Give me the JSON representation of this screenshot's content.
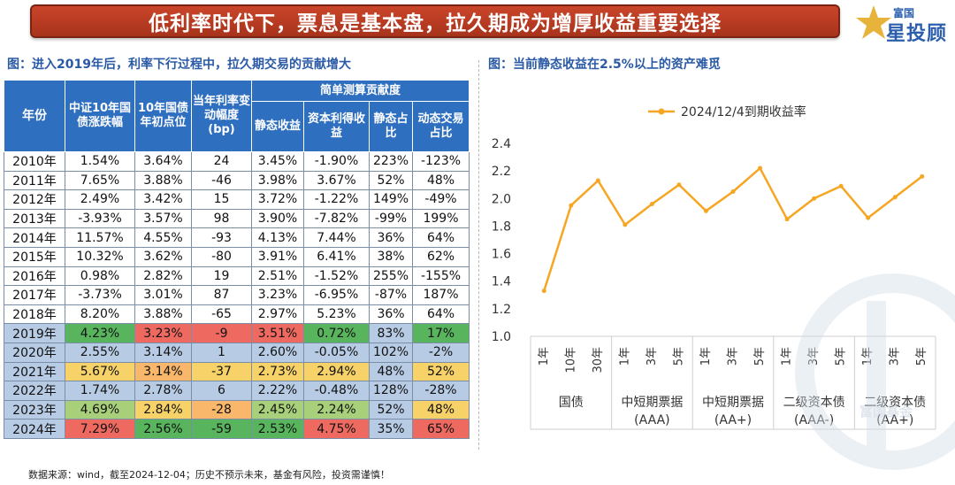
{
  "header": {
    "title": "低利率时代下，票息是基本盘，拉久期成为增厚收益重要选择",
    "logo_small": "富国",
    "logo_big": "星投顾"
  },
  "left": {
    "subtitle": "图：进入2019年后，利率下行过程中，拉久期交易的贡献增大",
    "group_header": "简单测算贡献度",
    "headers": [
      "年份",
      "中证10年国债涨跌幅",
      "10年国债年初点位",
      "当年利率变动幅度(bp)",
      "静态收益",
      "资本利得收益",
      "静态占比",
      "动态交易占比"
    ],
    "rows": [
      [
        "2010年",
        "1.54%",
        "3.64%",
        "24",
        "3.45%",
        "-1.90%",
        "223%",
        "-123%"
      ],
      [
        "2011年",
        "7.65%",
        "3.88%",
        "-46",
        "3.98%",
        "3.67%",
        "52%",
        "48%"
      ],
      [
        "2012年",
        "2.49%",
        "3.42%",
        "15",
        "3.72%",
        "-1.22%",
        "149%",
        "-49%"
      ],
      [
        "2013年",
        "-3.93%",
        "3.57%",
        "98",
        "3.90%",
        "-7.82%",
        "-99%",
        "199%"
      ],
      [
        "2014年",
        "11.57%",
        "4.55%",
        "-93",
        "4.13%",
        "7.44%",
        "36%",
        "64%"
      ],
      [
        "2015年",
        "10.32%",
        "3.62%",
        "-80",
        "3.91%",
        "6.41%",
        "38%",
        "62%"
      ],
      [
        "2016年",
        "0.98%",
        "2.82%",
        "19",
        "2.51%",
        "-1.52%",
        "255%",
        "-155%"
      ],
      [
        "2017年",
        "-3.73%",
        "3.01%",
        "87",
        "3.23%",
        "-6.95%",
        "-87%",
        "187%"
      ],
      [
        "2018年",
        "8.20%",
        "3.88%",
        "-65",
        "2.97%",
        "5.23%",
        "36%",
        "64%"
      ],
      [
        "2019年",
        "4.23%",
        "3.23%",
        "-9",
        "3.51%",
        "0.72%",
        "83%",
        "17%"
      ],
      [
        "2020年",
        "2.55%",
        "3.14%",
        "1",
        "2.60%",
        "-0.05%",
        "102%",
        "-2%"
      ],
      [
        "2021年",
        "5.67%",
        "3.14%",
        "-37",
        "2.73%",
        "2.94%",
        "48%",
        "52%"
      ],
      [
        "2022年",
        "1.74%",
        "2.78%",
        "6",
        "2.22%",
        "-0.48%",
        "128%",
        "-28%"
      ],
      [
        "2023年",
        "4.69%",
        "2.84%",
        "-28",
        "2.45%",
        "2.24%",
        "52%",
        "48%"
      ],
      [
        "2024年",
        "7.29%",
        "2.56%",
        "-59",
        "2.53%",
        "4.75%",
        "35%",
        "65%"
      ]
    ],
    "cell_colors": {
      "9": [
        "",
        "g",
        "r",
        "r",
        "r",
        "g",
        "",
        "g"
      ],
      "10": [
        "",
        "",
        "",
        "",
        "",
        "",
        "",
        ""
      ],
      "11": [
        "",
        "y",
        "o",
        "y",
        "y",
        "y",
        "",
        "y"
      ],
      "12": [
        "",
        "",
        "",
        "",
        "",
        "",
        "",
        ""
      ],
      "13": [
        "",
        "lg",
        "y",
        "o",
        "lg",
        "lg",
        "",
        "y"
      ],
      "14": [
        "",
        "r",
        "g",
        "g",
        "g",
        "r",
        "",
        "r"
      ]
    }
  },
  "right": {
    "subtitle": "图：当前静态收益在2.5%以上的资产难觅"
  },
  "chart_data": {
    "type": "line",
    "title": "",
    "legend": [
      "2024/12/4到期收益率"
    ],
    "legend_position": "top",
    "series_color": "#f5a623",
    "ylim": [
      1.0,
      2.4
    ],
    "yticks": [
      "1.0",
      "1.2",
      "1.4",
      "1.6",
      "1.8",
      "2.0",
      "2.2",
      "2.4"
    ],
    "x": [
      "1年",
      "10年",
      "30年",
      "1年",
      "3年",
      "5年",
      "1年",
      "3年",
      "5年",
      "1年",
      "3年",
      "5年",
      "1年",
      "3年",
      "5年"
    ],
    "groups": [
      {
        "label": "国债",
        "label2": "",
        "count": 3
      },
      {
        "label": "中短期票据",
        "label2": "(AAA)",
        "count": 3
      },
      {
        "label": "中短期票据",
        "label2": "(AA+)",
        "count": 3
      },
      {
        "label": "二级资本债",
        "label2": "(AAA-)",
        "count": 3
      },
      {
        "label": "二级资本债",
        "label2": "(AA+)",
        "count": 3
      }
    ],
    "series": [
      {
        "name": "2024/12/4到期收益率",
        "values": [
          1.33,
          1.95,
          2.13,
          1.81,
          1.96,
          2.1,
          1.91,
          2.05,
          2.22,
          1.85,
          2.0,
          2.09,
          1.86,
          2.01,
          2.16
        ]
      }
    ]
  },
  "watermark": "富国基金",
  "source": "数据来源：wind，截至2024-12-04；历史不预示未来，基金有风险，投资需谨慎！"
}
